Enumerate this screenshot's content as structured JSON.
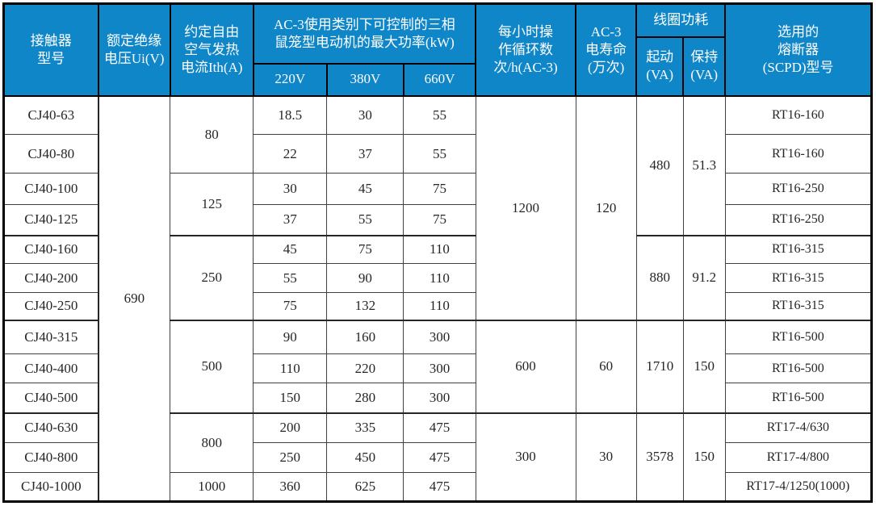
{
  "colors": {
    "header_bg": "#0F86C8",
    "header_text": "#FFFFFF",
    "body_text": "#262626",
    "grid_border": "#404040",
    "outer_border": "#000000"
  },
  "chart_data": {
    "type": "table",
    "title": "",
    "header": {
      "model": "接触器\n型号",
      "ui": "额定绝缘\n电压Ui(V)",
      "ith": "约定自由\n空气发热\n电流Ith(A)",
      "power_group": "AC-3使用类别下可控制的三相\n鼠笼型电动机的最大功率(kW)",
      "v220": "220V",
      "v380": "380V",
      "v660": "660V",
      "cycles": "每小时操\n作循环数\n次/h(AC-3)",
      "life": "AC-3\n电寿命\n(万次)",
      "coil_group": "线圈功耗",
      "start": "起动\n(VA)",
      "hold": "保持\n(VA)",
      "fuse": "选用的\n熔断器\n(SCPD)型号"
    },
    "rows": [
      {
        "model": "CJ40-63",
        "p220": "18.5",
        "p380": "30",
        "p660": "55",
        "fuse": "RT16-160"
      },
      {
        "model": "CJ40-80",
        "p220": "22",
        "p380": "37",
        "p660": "55",
        "fuse": "RT16-160"
      },
      {
        "model": "CJ40-100",
        "p220": "30",
        "p380": "45",
        "p660": "75",
        "fuse": "RT16-250"
      },
      {
        "model": "CJ40-125",
        "p220": "37",
        "p380": "55",
        "p660": "75",
        "fuse": "RT16-250"
      },
      {
        "model": "CJ40-160",
        "p220": "45",
        "p380": "75",
        "p660": "110",
        "fuse": "RT16-315"
      },
      {
        "model": "CJ40-200",
        "p220": "55",
        "p380": "90",
        "p660": "110",
        "fuse": "RT16-315"
      },
      {
        "model": "CJ40-250",
        "p220": "75",
        "p380": "132",
        "p660": "110",
        "fuse": "RT16-315"
      },
      {
        "model": "CJ40-315",
        "p220": "90",
        "p380": "160",
        "p660": "300",
        "fuse": "RT16-500"
      },
      {
        "model": "CJ40-400",
        "p220": "110",
        "p380": "220",
        "p660": "300",
        "fuse": "RT16-500"
      },
      {
        "model": "CJ40-500",
        "p220": "150",
        "p380": "280",
        "p660": "300",
        "fuse": "RT16-500"
      },
      {
        "model": "CJ40-630",
        "p220": "200",
        "p380": "335",
        "p660": "475",
        "fuse": "RT17-4/630"
      },
      {
        "model": "CJ40-800",
        "p220": "250",
        "p380": "450",
        "p660": "475",
        "fuse": "RT17-4/800"
      },
      {
        "model": "CJ40-1000",
        "p220": "360",
        "p380": "625",
        "p660": "475",
        "fuse": "RT17-4/1250(1000)"
      }
    ],
    "merged": {
      "ui": {
        "value": "690",
        "row_span": [
          1,
          13
        ]
      },
      "ith": [
        {
          "value": "80",
          "row_span": [
            1,
            2
          ]
        },
        {
          "value": "125",
          "row_span": [
            3,
            4
          ]
        },
        {
          "value": "250",
          "row_span": [
            5,
            7
          ]
        },
        {
          "value": "500",
          "row_span": [
            8,
            10
          ]
        },
        {
          "value": "800",
          "row_span": [
            11,
            12
          ]
        },
        {
          "value": "1000",
          "row_span": [
            13,
            13
          ]
        }
      ],
      "cycles": [
        {
          "value": "1200",
          "row_span": [
            1,
            7
          ]
        },
        {
          "value": "600",
          "row_span": [
            8,
            10
          ]
        },
        {
          "value": "300",
          "row_span": [
            11,
            13
          ]
        }
      ],
      "life": [
        {
          "value": "120",
          "row_span": [
            1,
            7
          ]
        },
        {
          "value": "60",
          "row_span": [
            8,
            10
          ]
        },
        {
          "value": "30",
          "row_span": [
            11,
            13
          ]
        }
      ],
      "start": [
        {
          "value": "480",
          "row_span": [
            1,
            4
          ]
        },
        {
          "value": "880",
          "row_span": [
            5,
            7
          ]
        },
        {
          "value": "1710",
          "row_span": [
            8,
            10
          ]
        },
        {
          "value": "3578",
          "row_span": [
            11,
            13
          ]
        }
      ],
      "hold": [
        {
          "value": "51.3",
          "row_span": [
            1,
            4
          ]
        },
        {
          "value": "91.2",
          "row_span": [
            5,
            7
          ]
        },
        {
          "value": "150",
          "row_span": [
            8,
            10
          ]
        },
        {
          "value": "150",
          "row_span": [
            11,
            13
          ]
        }
      ]
    }
  }
}
